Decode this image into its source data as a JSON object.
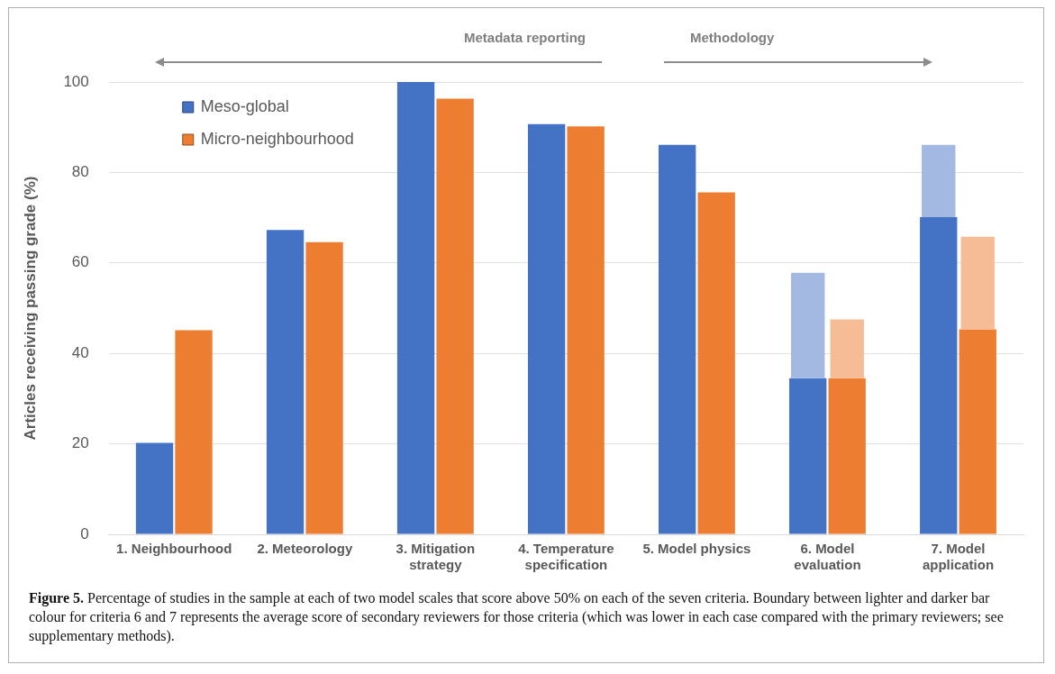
{
  "chart_data": {
    "type": "bar",
    "categories": [
      "1. Neighbourhood",
      "2. Meteorology",
      "3. Mitigation strategy",
      "4. Temperature specification",
      "5. Model physics",
      "6. Model evaluation",
      "7. Model application"
    ],
    "ylabel": "Articles receiving passing grade (%)",
    "series": [
      {
        "name": "Meso-global",
        "color": "#4472c4",
        "values": [
          20.2,
          67.3,
          100,
          90.7,
          86.1,
          34.5,
          70.1
        ]
      },
      {
        "color": "#a3b9e1",
        "values": [
          null,
          null,
          null,
          null,
          null,
          23.3,
          16.0
        ],
        "base": [
          null,
          null,
          null,
          null,
          null,
          34.5,
          70.1
        ]
      },
      {
        "name": "Micro-neighbourhood",
        "color": "#ed7d31",
        "values": [
          45.1,
          64.6,
          96.3,
          90.2,
          75.6,
          34.5,
          45.3
        ]
      },
      {
        "color": "#f5bc96",
        "values": [
          null,
          null,
          null,
          null,
          null,
          13.0,
          20.5
        ],
        "base": [
          null,
          null,
          null,
          null,
          null,
          34.5,
          45.3
        ]
      }
    ],
    "ylim": [
      0,
      100
    ],
    "yticks": [
      0,
      20,
      40,
      60,
      80,
      100
    ],
    "grid": "y",
    "legend": "top left",
    "annotations": [
      "Metadata reporting",
      "Methodology",
      "Figure 5. Percentage of studies in the sample at each of two model scales that score above 50% on each of the seven criteria. Boundary between lighter and darker bar colour for criteria 6 and 7 represents the average score of secondary reviewers for those criteria (which was lower in each case compared with the primary reviewers; see supplementary methods)."
    ]
  }
}
